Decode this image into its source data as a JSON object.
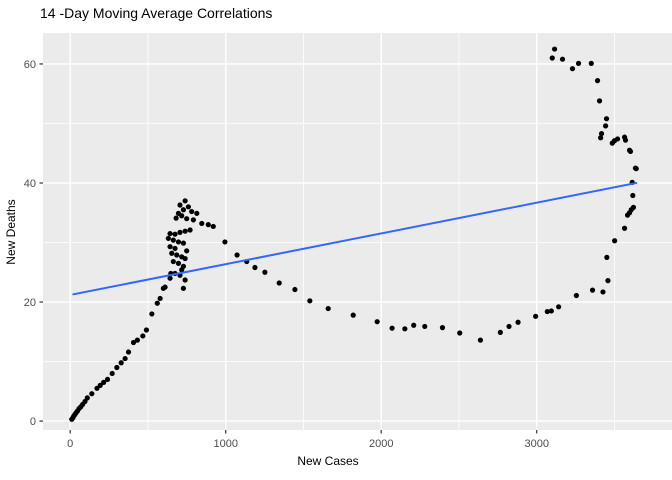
{
  "title": "14 -Day Moving Average Correlations",
  "style": {
    "background": "#FFFFFF",
    "panel_bg": "#EBEBEB",
    "grid_color": "#FFFFFF",
    "tick_label_color": "#4D4D4D",
    "tick_mark_color": "#333333",
    "title_color": "#000000",
    "point_color": "#000000",
    "smooth_line_color": "#3366FF"
  },
  "chart_data": {
    "type": "scatter",
    "title": "14 -Day Moving Average Correlations",
    "xlabel": "New Cases",
    "ylabel": "New Deaths",
    "xlim": [
      -175,
      3870
    ],
    "ylim": [
      -1.5,
      65.2
    ],
    "x_major_ticks": [
      0,
      1000,
      2000,
      3000
    ],
    "x_minor_ticks": [
      500,
      1500,
      2500,
      3500
    ],
    "y_major_ticks": [
      0,
      20,
      40,
      60
    ],
    "y_minor_ticks": [
      10,
      30,
      50
    ],
    "grid": "major+minor",
    "legend": "none",
    "series": [
      {
        "name": "daily-observations",
        "type": "scatter",
        "color": "#000000",
        "points": [
          [
            10,
            0.3
          ],
          [
            16,
            0.5
          ],
          [
            22,
            0.8
          ],
          [
            30,
            1.1
          ],
          [
            38,
            1.4
          ],
          [
            47,
            1.7
          ],
          [
            57,
            2.1
          ],
          [
            68,
            2.4
          ],
          [
            80,
            2.8
          ],
          [
            95,
            3.3
          ],
          [
            110,
            3.9
          ],
          [
            139,
            4.6
          ],
          [
            172,
            5.5
          ],
          [
            193,
            6.0
          ],
          [
            215,
            6.5
          ],
          [
            240,
            7.0
          ],
          [
            270,
            8.0
          ],
          [
            300,
            9.0
          ],
          [
            328,
            9.8
          ],
          [
            353,
            10.5
          ],
          [
            375,
            11.6
          ],
          [
            407,
            13.2
          ],
          [
            432,
            13.6
          ],
          [
            467,
            14.3
          ],
          [
            490,
            15.3
          ],
          [
            525,
            18.0
          ],
          [
            560,
            19.8
          ],
          [
            578,
            20.6
          ],
          [
            599,
            22.3
          ],
          [
            610,
            22.5
          ],
          [
            631,
            30.7
          ],
          [
            642,
            31.5
          ],
          [
            642,
            29.3
          ],
          [
            642,
            24.0
          ],
          [
            647,
            24.8
          ],
          [
            653,
            28.2
          ],
          [
            663,
            30.4
          ],
          [
            663,
            26.8
          ],
          [
            674,
            31.4
          ],
          [
            674,
            29.0
          ],
          [
            674,
            24.8
          ],
          [
            681,
            34.1
          ],
          [
            685,
            27.9
          ],
          [
            696,
            34.9
          ],
          [
            696,
            30.1
          ],
          [
            696,
            26.5
          ],
          [
            706,
            36.3
          ],
          [
            706,
            31.7
          ],
          [
            706,
            24.5
          ],
          [
            717,
            34.5
          ],
          [
            717,
            27.6
          ],
          [
            717,
            25.4
          ],
          [
            728,
            35.5
          ],
          [
            728,
            29.9
          ],
          [
            728,
            26.0
          ],
          [
            728,
            22.3
          ],
          [
            739,
            37.0
          ],
          [
            739,
            31.9
          ],
          [
            739,
            27.3
          ],
          [
            739,
            23.7
          ],
          [
            749,
            34.0
          ],
          [
            749,
            28.6
          ],
          [
            760,
            36.0
          ],
          [
            771,
            32.1
          ],
          [
            781,
            35.2
          ],
          [
            792,
            33.8
          ],
          [
            814,
            34.9
          ],
          [
            846,
            33.2
          ],
          [
            888,
            33.0
          ],
          [
            920,
            32.7
          ],
          [
            995,
            30.1
          ],
          [
            1073,
            27.9
          ],
          [
            1135,
            26.8
          ],
          [
            1188,
            25.8
          ],
          [
            1252,
            25.0
          ],
          [
            1344,
            23.2
          ],
          [
            1445,
            22.1
          ],
          [
            1541,
            20.2
          ],
          [
            1659,
            18.9
          ],
          [
            1820,
            17.8
          ],
          [
            1974,
            16.7
          ],
          [
            2070,
            15.6
          ],
          [
            2152,
            15.5
          ],
          [
            2209,
            16.1
          ],
          [
            2280,
            15.9
          ],
          [
            2394,
            15.7
          ],
          [
            2505,
            14.8
          ],
          [
            2638,
            13.6
          ],
          [
            2766,
            14.9
          ],
          [
            2822,
            15.9
          ],
          [
            2880,
            16.6
          ],
          [
            2993,
            17.6
          ],
          [
            3068,
            18.4
          ],
          [
            3094,
            18.5
          ],
          [
            3141,
            19.2
          ],
          [
            3255,
            21.1
          ],
          [
            3359,
            22.0
          ],
          [
            3426,
            21.7
          ],
          [
            3458,
            23.6
          ],
          [
            3451,
            27.5
          ],
          [
            3501,
            30.3
          ],
          [
            3565,
            32.4
          ],
          [
            3584,
            34.6
          ],
          [
            3597,
            35.0
          ],
          [
            3608,
            35.5
          ],
          [
            3622,
            35.9
          ],
          [
            3618,
            37.9
          ],
          [
            3614,
            40.1
          ],
          [
            3640,
            42.4
          ],
          [
            3635,
            42.5
          ],
          [
            3603,
            45.3
          ],
          [
            3597,
            45.5
          ],
          [
            3571,
            47.2
          ],
          [
            3565,
            47.7
          ],
          [
            3520,
            47.4
          ],
          [
            3500,
            47.1
          ],
          [
            3486,
            46.7
          ],
          [
            3411,
            47.6
          ],
          [
            3417,
            48.3
          ],
          [
            3443,
            49.6
          ],
          [
            3449,
            50.8
          ],
          [
            3404,
            53.8
          ],
          [
            3391,
            57.2
          ],
          [
            3351,
            60.1
          ],
          [
            3269,
            60.1
          ],
          [
            3230,
            59.2
          ],
          [
            3166,
            60.8
          ],
          [
            3100,
            61.0
          ],
          [
            3115,
            62.5
          ]
        ]
      },
      {
        "name": "linear-fit",
        "type": "line",
        "color": "#3366FF",
        "points": [
          [
            20,
            21.3
          ],
          [
            3640,
            40.0
          ]
        ]
      }
    ]
  }
}
